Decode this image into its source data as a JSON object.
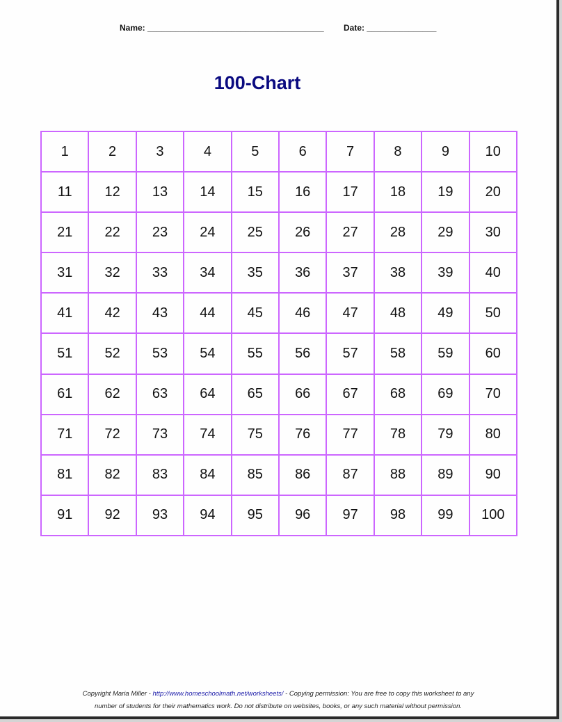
{
  "header": {
    "name_label": "Name: ______________________________________",
    "date_label": "Date: _______________"
  },
  "title": "100-Chart",
  "grid": {
    "numbers": [
      1,
      2,
      3,
      4,
      5,
      6,
      7,
      8,
      9,
      10,
      11,
      12,
      13,
      14,
      15,
      16,
      17,
      18,
      19,
      20,
      21,
      22,
      23,
      24,
      25,
      26,
      27,
      28,
      29,
      30,
      31,
      32,
      33,
      34,
      35,
      36,
      37,
      38,
      39,
      40,
      41,
      42,
      43,
      44,
      45,
      46,
      47,
      48,
      49,
      50,
      51,
      52,
      53,
      54,
      55,
      56,
      57,
      58,
      59,
      60,
      61,
      62,
      63,
      64,
      65,
      66,
      67,
      68,
      69,
      70,
      71,
      72,
      73,
      74,
      75,
      76,
      77,
      78,
      79,
      80,
      81,
      82,
      83,
      84,
      85,
      86,
      87,
      88,
      89,
      90,
      91,
      92,
      93,
      94,
      95,
      96,
      97,
      98,
      99,
      100
    ],
    "border_color": "#cc66ff"
  },
  "footer": {
    "copyright": "Copyright Maria Miller - ",
    "link": "http://www.homeschoolmath.net/worksheets/",
    "line1_rest": " - Copying permission: You are free to copy this worksheet to any",
    "line2": "number of students for their mathematics work. Do not distribute on websites, books, or any such material without permission."
  }
}
